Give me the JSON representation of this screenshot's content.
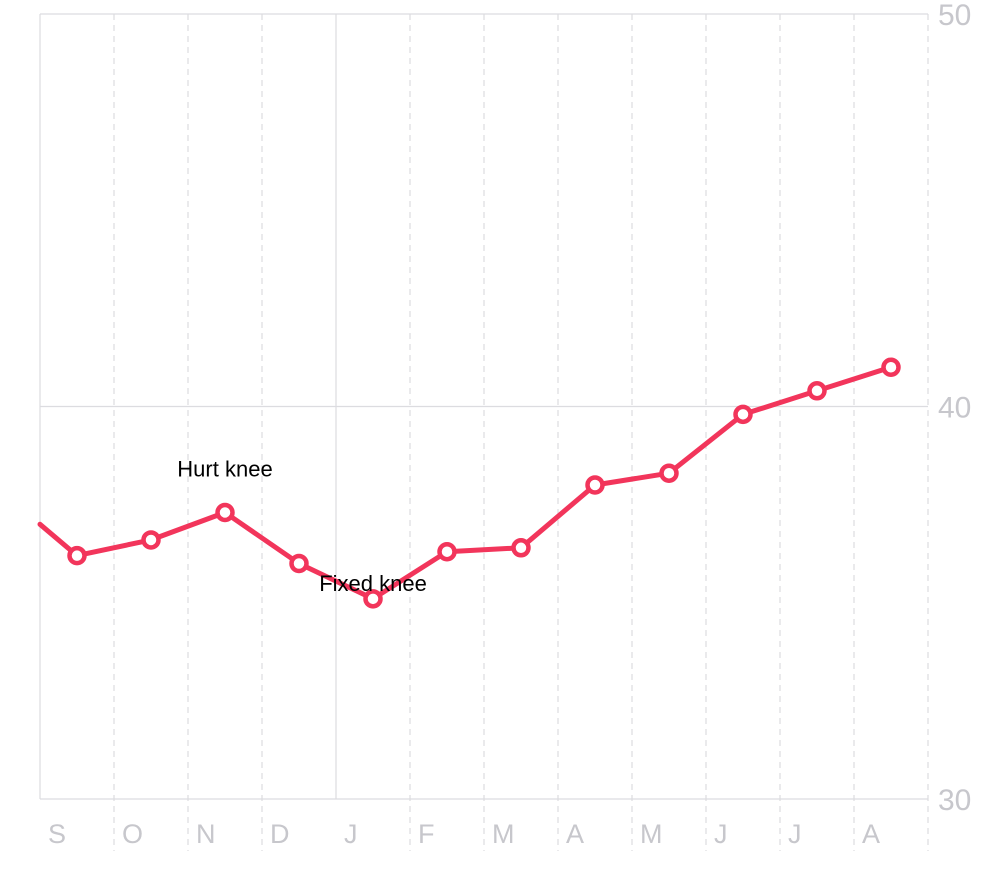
{
  "chart_data": {
    "type": "line",
    "title": "",
    "xlabel": "",
    "ylabel": "",
    "ylim": [
      30,
      50
    ],
    "y_ticks": [
      50,
      40,
      30
    ],
    "y_axis_side": "right",
    "month_labels": [
      "S",
      "O",
      "N",
      "D",
      "J",
      "F",
      "M",
      "A",
      "M",
      "J",
      "J",
      "A"
    ],
    "x_range": [
      0,
      12
    ],
    "grid": true,
    "series": [
      {
        "color": "#f2355b",
        "x": [
          0.0,
          0.5,
          1.5,
          2.5,
          3.5,
          4.5,
          5.5,
          6.5,
          7.5,
          8.5,
          9.5,
          10.5,
          11.5
        ],
        "values": [
          37.0,
          36.2,
          36.6,
          37.3,
          36.0,
          35.1,
          36.3,
          36.4,
          38.0,
          38.3,
          39.8,
          40.4,
          41.0
        ]
      }
    ],
    "annotations": [
      {
        "text": "Hurt knee",
        "x": 2.5,
        "y": 37.3,
        "placement": "above"
      },
      {
        "text": "Fixed knee",
        "x": 4.5,
        "y": 35.1,
        "placement": "above"
      }
    ],
    "colors": {
      "line": "#f2355b",
      "point_fill": "#ffffff",
      "grid": "#dcdce0",
      "tick_label": "#c7c7cc",
      "annotation": "#000000"
    }
  }
}
